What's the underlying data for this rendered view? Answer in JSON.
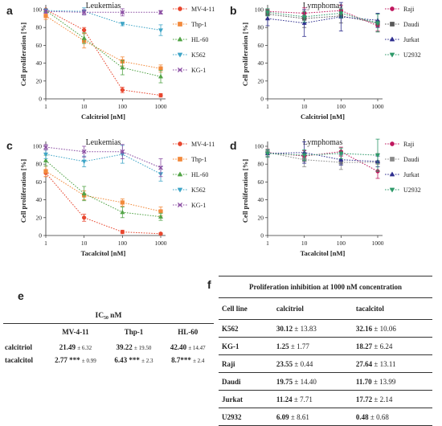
{
  "panels": {
    "a": {
      "letter": "a",
      "title": "Leukemias"
    },
    "b": {
      "letter": "b",
      "title": "Lymphomas"
    },
    "c": {
      "letter": "c",
      "title": "Leukemias"
    },
    "d": {
      "letter": "d",
      "title": "Lymphomas"
    }
  },
  "chart_data": [
    {
      "id": "a",
      "type": "line",
      "title": "Leukemias",
      "xlabel": "Calcitriol [nM]",
      "ylabel": "Cell proliferation [%]",
      "x": [
        1,
        10,
        100,
        1000
      ],
      "x_scale": "log",
      "xticks": [
        "1",
        "10",
        "100",
        "1000"
      ],
      "ylim": [
        0,
        100
      ],
      "yticks": [
        "0",
        "20",
        "40",
        "60",
        "80",
        "100"
      ],
      "legend_position": "right",
      "series": [
        {
          "name": "MV-4-11",
          "values": [
            100,
            77,
            10,
            4
          ],
          "err": [
            0,
            3,
            3,
            2
          ],
          "color": "#e8472f",
          "marker": "circle"
        },
        {
          "name": "Thp-1",
          "values": [
            93,
            65,
            42,
            34
          ],
          "err": [
            4,
            8,
            5,
            4
          ],
          "color": "#f28a3c",
          "marker": "square"
        },
        {
          "name": "HL-60",
          "values": [
            99,
            68,
            35,
            25
          ],
          "err": [
            2,
            6,
            8,
            7
          ],
          "color": "#52a447",
          "marker": "triangle-up"
        },
        {
          "name": "K562",
          "values": [
            99,
            98,
            84,
            77
          ],
          "err": [
            2,
            4,
            2,
            6
          ],
          "color": "#3fa5c7",
          "marker": "triangle-down"
        },
        {
          "name": "KG-1",
          "values": [
            98,
            97,
            97,
            97
          ],
          "err": [
            2,
            3,
            4,
            2
          ],
          "color": "#8b4ea3",
          "marker": "cross"
        }
      ]
    },
    {
      "id": "b",
      "type": "line",
      "title": "Lymphomas",
      "xlabel": "Calcitriol [nM]",
      "ylabel": "Cell proliferation [%]",
      "x": [
        1,
        10,
        100,
        1000
      ],
      "x_scale": "log",
      "xticks": [
        "1",
        "10",
        "100",
        "1000"
      ],
      "ylim": [
        0,
        100
      ],
      "yticks": [
        "0",
        "20",
        "40",
        "60",
        "80",
        "100"
      ],
      "legend_position": "right",
      "series": [
        {
          "name": "Raji",
          "values": [
            98,
            96,
            99,
            82
          ],
          "err": [
            3,
            6,
            6,
            6
          ],
          "color": "#c0185f",
          "marker": "circle"
        },
        {
          "name": "Daudi",
          "values": [
            95,
            90,
            93,
            85
          ],
          "err": [
            5,
            10,
            8,
            10
          ],
          "color": "#5a5a5a",
          "marker": "square"
        },
        {
          "name": "Jurkat",
          "values": [
            90,
            85,
            92,
            88
          ],
          "err": [
            8,
            15,
            16,
            8
          ],
          "color": "#2f2f8f",
          "marker": "triangle-up"
        },
        {
          "name": "U2932",
          "values": [
            97,
            92,
            96,
            85
          ],
          "err": [
            4,
            6,
            5,
            10
          ],
          "color": "#2f9a6a",
          "marker": "triangle-down"
        }
      ]
    },
    {
      "id": "c",
      "type": "line",
      "title": "Leukemias",
      "xlabel": "Tacalcitol [nM]",
      "ylabel": "Cell proliferation [%]",
      "x": [
        1,
        10,
        100,
        1000
      ],
      "x_scale": "log",
      "xticks": [
        "1",
        "10",
        "100",
        "1000"
      ],
      "ylim": [
        0,
        100
      ],
      "yticks": [
        "0",
        "20",
        "40",
        "60",
        "80",
        "100"
      ],
      "legend_position": "right",
      "series": [
        {
          "name": "MV-4-11",
          "values": [
            70,
            20,
            4,
            2
          ],
          "err": [
            4,
            4,
            2,
            1
          ],
          "color": "#e8472f",
          "marker": "circle"
        },
        {
          "name": "Thp-1",
          "values": [
            72,
            45,
            37,
            27
          ],
          "err": [
            6,
            5,
            4,
            5
          ],
          "color": "#f28a3c",
          "marker": "square"
        },
        {
          "name": "HL-60",
          "values": [
            84,
            47,
            26,
            21
          ],
          "err": [
            6,
            8,
            6,
            4
          ],
          "color": "#52a447",
          "marker": "triangle-up"
        },
        {
          "name": "K562",
          "values": [
            91,
            83,
            91,
            69
          ],
          "err": [
            5,
            6,
            10,
            8
          ],
          "color": "#3fa5c7",
          "marker": "triangle-down"
        },
        {
          "name": "KG-1",
          "values": [
            99,
            94,
            94,
            76
          ],
          "err": [
            3,
            6,
            8,
            10
          ],
          "color": "#8b4ea3",
          "marker": "cross"
        }
      ]
    },
    {
      "id": "d",
      "type": "line",
      "title": "Lymphomas",
      "xlabel": "Tacalcitol [nM]",
      "ylabel": "Cell proliferation [%]",
      "x": [
        1,
        10,
        100,
        1000
      ],
      "x_scale": "log",
      "xticks": [
        "1",
        "10",
        "100",
        "1000"
      ],
      "ylim": [
        0,
        100
      ],
      "yticks": [
        "0",
        "20",
        "40",
        "60",
        "80",
        "100"
      ],
      "legend_position": "right",
      "series": [
        {
          "name": "Raji",
          "values": [
            93,
            89,
            94,
            72
          ],
          "err": [
            4,
            6,
            5,
            8
          ],
          "color": "#c0185f",
          "marker": "circle"
        },
        {
          "name": "Daudi",
          "values": [
            93,
            85,
            82,
            82
          ],
          "err": [
            4,
            8,
            8,
            10
          ],
          "color": "#8a8a8a",
          "marker": "square"
        },
        {
          "name": "Jurkat",
          "values": [
            92,
            93,
            85,
            83
          ],
          "err": [
            4,
            12,
            6,
            6
          ],
          "color": "#2f2f8f",
          "marker": "triangle-up"
        },
        {
          "name": "U2932",
          "values": [
            92,
            90,
            92,
            90
          ],
          "err": [
            4,
            6,
            6,
            18
          ],
          "color": "#2f9a6a",
          "marker": "triangle-down"
        }
      ]
    }
  ],
  "table_e": {
    "letter": "e",
    "title": "IC₅₀ nM",
    "columns": [
      "MV-4-11",
      "Thp-1",
      "HL-60"
    ],
    "rows": [
      {
        "name": "calcitriol",
        "cells": [
          {
            "value": "21.49",
            "mark": "",
            "sd": "± 6.32"
          },
          {
            "value": "39.22",
            "mark": "",
            "sd": "± 19.50"
          },
          {
            "value": "42.40",
            "mark": "",
            "sd": "± 14.47"
          }
        ]
      },
      {
        "name": "tacalcitol",
        "cells": [
          {
            "value": "2.77",
            "mark": " ***",
            "sd": "± 0.99"
          },
          {
            "value": "6.43",
            "mark": " ***",
            "sd": "± 2.3"
          },
          {
            "value": "8.7",
            "mark": "***",
            "sd": "± 2.4"
          }
        ]
      }
    ]
  },
  "table_f": {
    "letter": "f",
    "title": "Proliferation inhibition at 1000 nM concentration",
    "columns": [
      "Cell line",
      "calcitriol",
      "tacalcitol"
    ],
    "rows": [
      {
        "line": "K562",
        "c_val": "30.12",
        "c_sd": "± 13.83",
        "t_val": "32.16",
        "t_sd": "± 10.06"
      },
      {
        "line": "KG-1",
        "c_val": "1.25",
        "c_sd": "± 1.77",
        "t_val": "18.27",
        "t_sd": "± 6.24"
      },
      {
        "line": "Raji",
        "c_val": "23.55",
        "c_sd": "± 0.44",
        "t_val": "27.64",
        "t_sd": "± 13.11"
      },
      {
        "line": "Daudi",
        "c_val": "19.75",
        "c_sd": "± 14.40",
        "t_val": "11.70",
        "t_sd": "± 13.99"
      },
      {
        "line": "Jurkat",
        "c_val": "11.24",
        "c_sd": "± 7.71",
        "t_val": "17.72",
        "t_sd": "± 2.14"
      },
      {
        "line": "U2932",
        "c_val": "6.09",
        "c_sd": "± 8.61",
        "t_val": "0.48",
        "t_sd": "± 0.68"
      }
    ]
  }
}
